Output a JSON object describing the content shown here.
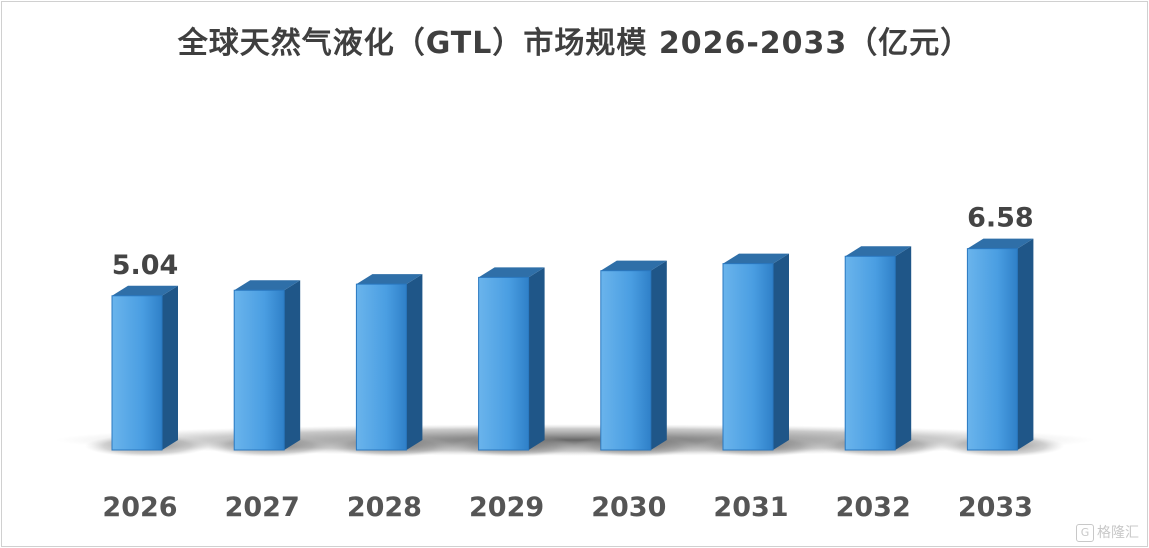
{
  "chart_data": {
    "type": "bar",
    "title": "全球天然气液化（GTL）市场规模 2026-2033（亿元）",
    "categories": [
      "2026",
      "2027",
      "2028",
      "2029",
      "2030",
      "2031",
      "2032",
      "2033"
    ],
    "values": [
      5.04,
      5.22,
      5.42,
      5.64,
      5.86,
      6.09,
      6.33,
      6.58
    ],
    "data_labels": [
      "5.04",
      "",
      "",
      "",
      "",
      "",
      "",
      "6.58"
    ],
    "ylim": [
      0,
      6.58
    ],
    "grid": false,
    "legend": "none",
    "colors": {
      "bar_front": "#3a8fd6",
      "bar_top": "#2f6fa8",
      "bar_side": "#1f5688"
    }
  },
  "watermark": {
    "icon": "G",
    "text": "格隆汇"
  }
}
